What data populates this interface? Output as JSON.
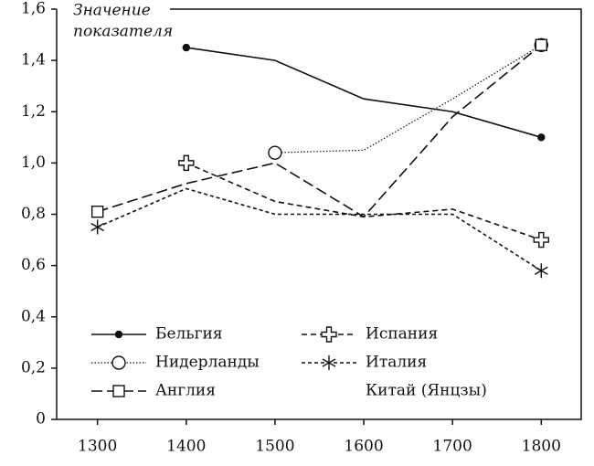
{
  "chart_data": {
    "type": "line",
    "ylabel": [
      "Значение",
      "показателя"
    ],
    "x": [
      1300,
      1400,
      1500,
      1600,
      1700,
      1800
    ],
    "xlim": [
      1254,
      1845
    ],
    "xticks": [
      1300,
      1400,
      1500,
      1600,
      1700,
      1800
    ],
    "ylim": [
      0,
      1.6
    ],
    "yticks": [
      0,
      {
        "value": 0.2,
        "label": "0,2"
      },
      {
        "value": 0.4,
        "label": "0,4"
      },
      {
        "value": 0.6,
        "label": "0,6"
      },
      {
        "value": 0.8,
        "label": "0,8"
      },
      {
        "value": 1.0,
        "label": "1,0"
      },
      {
        "value": 1.2,
        "label": "1,2"
      },
      {
        "value": 1.4,
        "label": "1,4"
      },
      {
        "value": 1.6,
        "label": "1,6"
      }
    ],
    "series": [
      {
        "name": "Бельгия",
        "color": "#111111",
        "dash": "solid",
        "marker": "dot",
        "values": [
          null,
          1.45,
          1.4,
          1.25,
          1.2,
          1.1
        ]
      },
      {
        "name": "Нидерланды",
        "color": "#111111",
        "dash": "dotted",
        "marker": "circle",
        "values": [
          null,
          null,
          1.04,
          1.05,
          1.25,
          1.46
        ]
      },
      {
        "name": "Англия",
        "color": "#111111",
        "dash": "long",
        "marker": "square",
        "values": [
          0.81,
          0.92,
          1.0,
          0.79,
          1.18,
          1.46
        ]
      },
      {
        "name": "Испания",
        "color": "#111111",
        "dash": "short",
        "marker": "cross",
        "values": [
          null,
          1.0,
          0.85,
          0.79,
          0.82,
          0.7
        ]
      },
      {
        "name": "Италия",
        "color": "#111111",
        "dash": "dashdot",
        "marker": "asterisk",
        "values": [
          0.75,
          0.9,
          0.8,
          0.8,
          0.8,
          0.58
        ]
      },
      {
        "name": "Китай (Янцзы)",
        "color": "#111111",
        "dash": "none",
        "marker": "none",
        "values": [
          null,
          null,
          null,
          null,
          null,
          null
        ]
      }
    ]
  }
}
